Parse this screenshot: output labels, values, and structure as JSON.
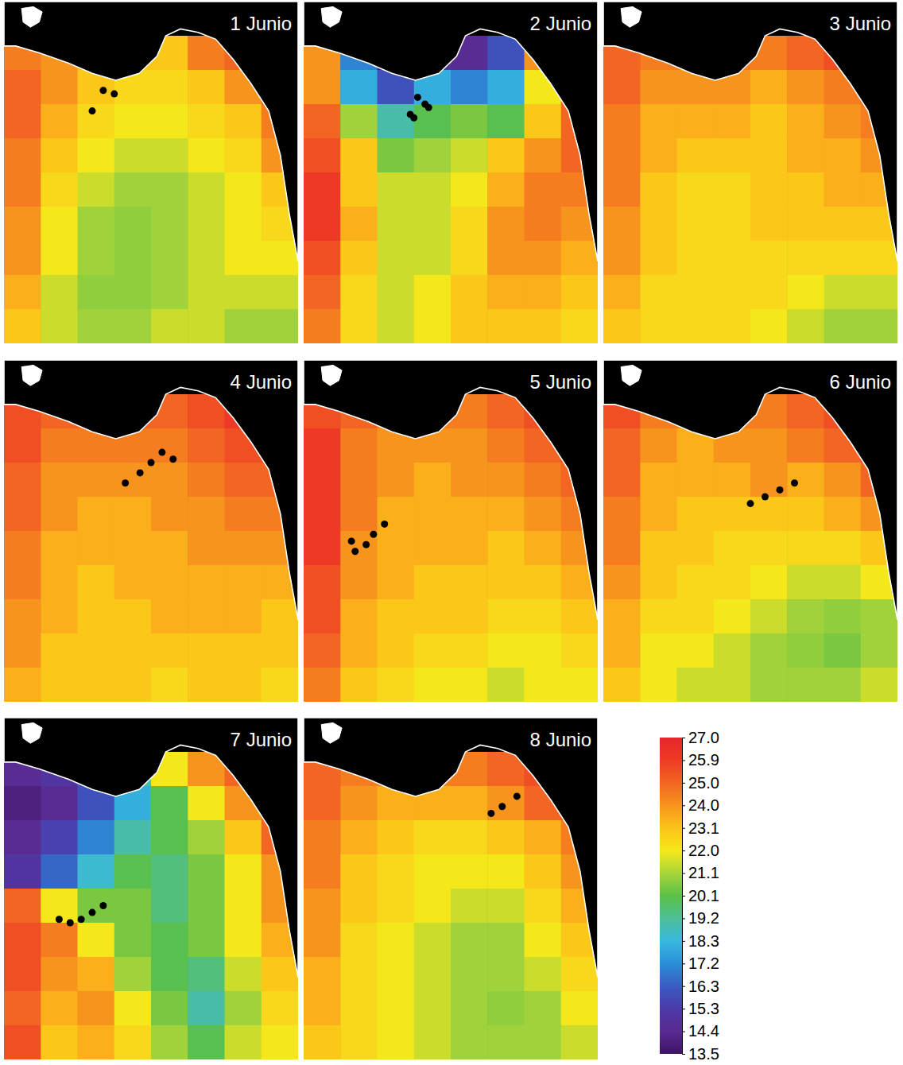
{
  "chart_data": {
    "type": "heatmap",
    "tick_labels": false,
    "panels": [
      {
        "title": "1 Junio",
        "cells": [
          [
            null,
            null,
            null,
            null,
            null,
            null,
            null,
            null
          ],
          [
            24.5,
            24,
            23.5,
            23,
            23,
            24.5,
            25,
            null
          ],
          [
            25,
            24,
            23,
            22.5,
            22.5,
            23,
            24,
            25
          ],
          [
            25,
            23.5,
            22.5,
            22,
            22,
            22.5,
            23,
            24.5
          ],
          [
            24.5,
            23,
            22,
            21.5,
            21.5,
            22,
            22.5,
            24
          ],
          [
            24.5,
            22.5,
            21.5,
            21,
            21,
            21.5,
            22,
            23
          ],
          [
            24,
            22,
            21,
            20.8,
            21,
            21.5,
            22,
            22.5
          ],
          [
            24,
            22,
            21,
            20.8,
            21,
            21.5,
            22,
            22
          ],
          [
            23.5,
            21.5,
            20.8,
            20.8,
            21,
            21.5,
            21.5,
            21.5
          ],
          [
            23,
            21.5,
            21,
            21,
            21.5,
            21.5,
            21,
            21
          ]
        ],
        "station_x": [
          2.4,
          2.7,
          3.0
        ],
        "station_y": [
          3.2,
          2.6,
          2.7
        ]
      },
      {
        "title": "2 Junio",
        "cells": [
          [
            null,
            null,
            null,
            null,
            null,
            null,
            null,
            null
          ],
          [
            24,
            17,
            14,
            15,
            14.5,
            16,
            24,
            null
          ],
          [
            24,
            18,
            16,
            18,
            17,
            18,
            22,
            25
          ],
          [
            25,
            21,
            19,
            20,
            20.5,
            20,
            23,
            25
          ],
          [
            25.5,
            23,
            20.5,
            21,
            21.5,
            23,
            24,
            25
          ],
          [
            26,
            23,
            21.5,
            21.5,
            22,
            23.5,
            24.5,
            24.5
          ],
          [
            26,
            23.5,
            21.5,
            21.5,
            22.5,
            24,
            24.5,
            24
          ],
          [
            25.5,
            23,
            21.5,
            21.5,
            22.5,
            24,
            24,
            23.5
          ],
          [
            25,
            22.5,
            21.5,
            22,
            23,
            23.5,
            23.5,
            23
          ],
          [
            24.5,
            22.5,
            21.5,
            22,
            23,
            23,
            23,
            22.5
          ]
        ],
        "station_x": [
          2.9,
          3.0,
          3.1,
          3.3,
          3.4
        ],
        "station_y": [
          3.3,
          3.4,
          2.8,
          3.0,
          3.1
        ]
      },
      {
        "title": "3 Junio",
        "cells": [
          [
            null,
            null,
            null,
            null,
            null,
            null,
            null,
            null
          ],
          [
            25,
            24.5,
            24.5,
            24.5,
            24.5,
            25,
            25.5,
            null
          ],
          [
            25,
            24,
            24,
            24,
            23.5,
            24,
            24.5,
            25
          ],
          [
            24.5,
            23.5,
            23.5,
            23.5,
            23,
            23.5,
            24,
            24.5
          ],
          [
            24.5,
            23.5,
            23,
            23,
            23,
            23.5,
            23.5,
            24
          ],
          [
            24.5,
            23,
            22.5,
            22.5,
            23,
            23,
            23.5,
            23.5
          ],
          [
            24,
            23,
            22.5,
            22.5,
            23,
            23,
            23,
            23
          ],
          [
            24,
            23,
            22.5,
            22.5,
            22.5,
            22.5,
            22.5,
            22.5
          ],
          [
            23.5,
            22.5,
            22.5,
            22.5,
            22.5,
            22,
            21.5,
            21.5
          ],
          [
            23,
            22.5,
            22.5,
            22.5,
            22,
            21.5,
            21,
            21
          ]
        ],
        "station_x": [],
        "station_y": []
      },
      {
        "title": "4 Junio",
        "cells": [
          [
            null,
            null,
            null,
            null,
            null,
            null,
            null,
            null
          ],
          [
            25.5,
            25,
            25,
            25,
            25,
            25.5,
            26,
            null
          ],
          [
            25.5,
            24.5,
            24.5,
            24.5,
            24.5,
            25,
            25.5,
            25.5
          ],
          [
            25,
            24,
            24,
            24,
            24,
            24.5,
            25,
            25
          ],
          [
            25,
            24,
            23.5,
            23.5,
            24,
            24,
            24.5,
            24.5
          ],
          [
            24.5,
            23.5,
            23.5,
            23.5,
            23.5,
            24,
            24,
            24
          ],
          [
            24.5,
            23.5,
            23,
            23.5,
            23.5,
            23.5,
            23.5,
            23.5
          ],
          [
            24,
            23.5,
            23,
            23,
            23.5,
            23.5,
            23.5,
            23
          ],
          [
            24,
            23,
            23,
            23,
            23,
            23,
            23,
            23
          ],
          [
            23.5,
            23,
            23,
            23,
            22.5,
            23,
            23,
            22.5
          ]
        ],
        "station_x": [
          3.3,
          3.7,
          4.0,
          4.3,
          4.6
        ],
        "station_y": [
          3.6,
          3.3,
          3.0,
          2.7,
          2.9
        ]
      },
      {
        "title": "5 Junio",
        "cells": [
          [
            null,
            null,
            null,
            null,
            null,
            null,
            null,
            null
          ],
          [
            25.5,
            25,
            24.5,
            24.5,
            24.5,
            25,
            25.5,
            null
          ],
          [
            26,
            24.5,
            24,
            24,
            24,
            24.5,
            25,
            25.5
          ],
          [
            26,
            24.5,
            24,
            23.5,
            24,
            24,
            24.5,
            25
          ],
          [
            26,
            24.5,
            23.5,
            23.5,
            23.5,
            23.5,
            24,
            24.5
          ],
          [
            26,
            24,
            23.5,
            23.5,
            23.5,
            23,
            23.5,
            24
          ],
          [
            25.5,
            24,
            23.5,
            23,
            23,
            23,
            23,
            23.5
          ],
          [
            25.5,
            23.5,
            23,
            23,
            23,
            22.5,
            22.5,
            23
          ],
          [
            25,
            23.5,
            23,
            22.5,
            22.5,
            22,
            22,
            22.5
          ],
          [
            24.5,
            23,
            22.5,
            22,
            22,
            21.5,
            22,
            22
          ]
        ],
        "station_x": [
          1.3,
          1.4,
          1.7,
          1.9,
          2.2
        ],
        "station_y": [
          5.3,
          5.6,
          5.4,
          5.1,
          4.8
        ]
      },
      {
        "title": "6 Junio",
        "cells": [
          [
            null,
            null,
            null,
            null,
            null,
            null,
            null,
            null
          ],
          [
            25.5,
            24.5,
            24.5,
            24.5,
            24.5,
            25,
            25.5,
            null
          ],
          [
            25,
            24,
            23.5,
            24,
            24,
            24.5,
            25,
            25.5
          ],
          [
            25,
            23.5,
            23.5,
            23.5,
            24,
            23.5,
            24,
            25
          ],
          [
            24.5,
            23.5,
            23,
            23,
            23,
            23,
            23.5,
            24
          ],
          [
            24.5,
            23,
            23,
            22.5,
            22.5,
            22.5,
            22.5,
            23
          ],
          [
            24,
            23,
            22.5,
            22.5,
            22,
            21.5,
            21.5,
            22
          ],
          [
            23.5,
            22.5,
            22.5,
            22,
            21.5,
            21,
            20.8,
            21
          ],
          [
            23.5,
            22,
            22,
            21.5,
            21,
            20.8,
            20.5,
            21
          ],
          [
            23,
            22,
            21.5,
            21.5,
            21,
            21,
            21,
            21.5
          ]
        ],
        "station_x": [
          4.0,
          4.4,
          4.8,
          5.2
        ],
        "station_y": [
          4.2,
          4.0,
          3.8,
          3.6
        ]
      },
      {
        "title": "7 Junio",
        "cells": [
          [
            null,
            null,
            null,
            null,
            null,
            null,
            null,
            null
          ],
          [
            14.5,
            15,
            16,
            19,
            22,
            24,
            25,
            null
          ],
          [
            14,
            14.5,
            16,
            18,
            20,
            22,
            24,
            25
          ],
          [
            14.5,
            15.5,
            17,
            19,
            20,
            21,
            23,
            25
          ],
          [
            15,
            16.5,
            18.5,
            20,
            19.5,
            20.5,
            22,
            24
          ],
          [
            25,
            22,
            20.5,
            20.5,
            19.5,
            20.5,
            22,
            24
          ],
          [
            25.5,
            24.5,
            22,
            20.5,
            20,
            20.5,
            22,
            23.5
          ],
          [
            25.5,
            24,
            23.5,
            21,
            20,
            19.5,
            21.5,
            23
          ],
          [
            25,
            23.5,
            24,
            22,
            20.5,
            19,
            21,
            22.5
          ],
          [
            25.5,
            23,
            23.5,
            22.5,
            21,
            20,
            21.5,
            22
          ]
        ],
        "station_x": [
          1.5,
          1.8,
          2.1,
          2.4,
          2.7
        ],
        "station_y": [
          5.9,
          6.0,
          5.9,
          5.7,
          5.5
        ]
      },
      {
        "title": "8 Junio",
        "cells": [
          [
            null,
            null,
            null,
            null,
            null,
            null,
            null,
            null
          ],
          [
            25,
            24.5,
            24.5,
            24.5,
            24.5,
            25,
            25.5,
            null
          ],
          [
            25,
            24,
            23.5,
            23.5,
            23.5,
            24,
            25,
            25.5
          ],
          [
            24.5,
            23.5,
            23,
            22.5,
            22.5,
            23,
            23.5,
            24.5
          ],
          [
            24.5,
            23,
            22.5,
            22,
            22,
            22,
            23,
            24
          ],
          [
            24,
            23,
            22.5,
            22,
            21.5,
            21.5,
            22.5,
            23.5
          ],
          [
            24,
            22.5,
            22,
            21.5,
            21,
            21,
            22,
            23
          ],
          [
            23.5,
            22.5,
            22,
            21.5,
            21,
            21,
            21.5,
            22.5
          ],
          [
            23.5,
            22.5,
            22,
            21.5,
            21,
            20.8,
            21,
            22
          ],
          [
            23,
            22.5,
            22,
            21.5,
            21,
            21,
            21,
            21.5
          ]
        ],
        "station_x": [
          5.1,
          5.4,
          5.8
        ],
        "station_y": [
          2.8,
          2.6,
          2.3
        ]
      }
    ],
    "colorbar": {
      "range": [
        13.5,
        27
      ],
      "ticks": [
        {
          "value": 27,
          "label": "27.0"
        },
        25.9,
        {
          "value": 25,
          "label": "25.0"
        },
        {
          "value": 24,
          "label": "24.0"
        },
        23.1,
        {
          "value": 22,
          "label": "22.0"
        },
        21.1,
        20.1,
        19.2,
        18.3,
        17.2,
        16.3,
        15.3,
        14.4,
        13.5
      ],
      "colors": [
        "#e6262b",
        "#ee3b24",
        "#f26522",
        "#f7941d",
        "#fcc419",
        "#f5e81a",
        "#a8d53a",
        "#5bbf45",
        "#4dbf98",
        "#39b8e0",
        "#2a8fd6",
        "#3a5cc4",
        "#4b3aa8",
        "#5a2a90",
        "#3d1466"
      ]
    }
  }
}
